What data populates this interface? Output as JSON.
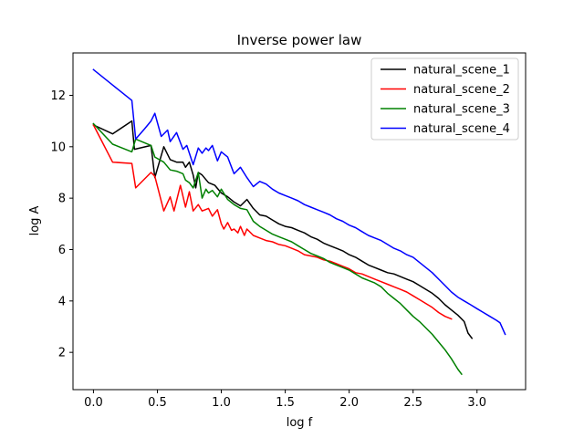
{
  "chart_data": {
    "type": "line",
    "title": "Inverse power law",
    "xlabel": "log f",
    "ylabel": "log A",
    "xlim": [
      -0.16,
      3.38
    ],
    "ylim": [
      0.55,
      13.65
    ],
    "xticks": [
      0.0,
      0.5,
      1.0,
      1.5,
      2.0,
      2.5,
      3.0
    ],
    "xtick_labels": [
      "0.0",
      "0.5",
      "1.0",
      "1.5",
      "2.0",
      "2.5",
      "3.0"
    ],
    "yticks": [
      2,
      4,
      6,
      8,
      10,
      12
    ],
    "ytick_labels": [
      "2",
      "4",
      "6",
      "8",
      "10",
      "12"
    ],
    "grid": false,
    "legend_position": "top-right",
    "series": [
      {
        "name": "natural_scene_1",
        "color": "#000000",
        "x": [
          0.0,
          0.15,
          0.3,
          0.32,
          0.45,
          0.48,
          0.55,
          0.6,
          0.65,
          0.7,
          0.72,
          0.75,
          0.78,
          0.8,
          0.82,
          0.85,
          0.9,
          0.95,
          1.0,
          1.05,
          1.1,
          1.15,
          1.2,
          1.25,
          1.3,
          1.35,
          1.4,
          1.45,
          1.5,
          1.55,
          1.6,
          1.65,
          1.7,
          1.75,
          1.8,
          1.85,
          1.9,
          1.95,
          2.0,
          2.05,
          2.1,
          2.15,
          2.2,
          2.25,
          2.3,
          2.35,
          2.4,
          2.45,
          2.5,
          2.55,
          2.6,
          2.65,
          2.7,
          2.75,
          2.8,
          2.85,
          2.9,
          2.93,
          2.96
        ],
        "y": [
          10.85,
          10.5,
          11.0,
          9.9,
          10.05,
          8.8,
          10.0,
          9.5,
          9.4,
          9.4,
          9.2,
          9.4,
          8.9,
          8.4,
          9.0,
          8.9,
          8.6,
          8.5,
          8.2,
          8.05,
          7.85,
          7.7,
          7.95,
          7.6,
          7.35,
          7.3,
          7.15,
          7.0,
          6.9,
          6.85,
          6.75,
          6.65,
          6.5,
          6.4,
          6.25,
          6.15,
          6.05,
          5.95,
          5.8,
          5.7,
          5.55,
          5.4,
          5.3,
          5.2,
          5.1,
          5.05,
          4.95,
          4.85,
          4.75,
          4.6,
          4.45,
          4.3,
          4.1,
          3.85,
          3.65,
          3.45,
          3.2,
          2.75,
          2.55
        ]
      },
      {
        "name": "natural_scene_2",
        "color": "#ff0000",
        "x": [
          0.0,
          0.15,
          0.3,
          0.33,
          0.45,
          0.48,
          0.55,
          0.6,
          0.63,
          0.68,
          0.72,
          0.75,
          0.78,
          0.82,
          0.85,
          0.9,
          0.93,
          0.97,
          1.0,
          1.02,
          1.05,
          1.08,
          1.1,
          1.13,
          1.15,
          1.18,
          1.2,
          1.25,
          1.3,
          1.35,
          1.4,
          1.45,
          1.5,
          1.55,
          1.6,
          1.65,
          1.7,
          1.75,
          1.8,
          1.85,
          1.9,
          1.95,
          2.0,
          2.05,
          2.1,
          2.15,
          2.2,
          2.25,
          2.3,
          2.35,
          2.4,
          2.45,
          2.5,
          2.55,
          2.6,
          2.65,
          2.7,
          2.75,
          2.8
        ],
        "y": [
          10.85,
          9.4,
          9.35,
          8.4,
          9.0,
          8.85,
          7.5,
          8.05,
          7.5,
          8.5,
          7.65,
          8.25,
          7.5,
          7.75,
          7.5,
          7.6,
          7.3,
          7.55,
          7.0,
          6.8,
          7.05,
          6.75,
          6.8,
          6.65,
          6.9,
          6.55,
          6.8,
          6.55,
          6.45,
          6.35,
          6.3,
          6.2,
          6.15,
          6.05,
          5.95,
          5.8,
          5.75,
          5.7,
          5.6,
          5.55,
          5.45,
          5.35,
          5.25,
          5.1,
          5.05,
          4.95,
          4.85,
          4.75,
          4.65,
          4.55,
          4.45,
          4.35,
          4.2,
          4.05,
          3.9,
          3.75,
          3.55,
          3.4,
          3.3
        ]
      },
      {
        "name": "natural_scene_3",
        "color": "#008000",
        "x": [
          0.0,
          0.15,
          0.3,
          0.33,
          0.45,
          0.48,
          0.55,
          0.6,
          0.65,
          0.7,
          0.72,
          0.75,
          0.78,
          0.82,
          0.85,
          0.88,
          0.9,
          0.93,
          0.97,
          1.0,
          1.05,
          1.1,
          1.15,
          1.2,
          1.25,
          1.3,
          1.35,
          1.4,
          1.45,
          1.5,
          1.55,
          1.6,
          1.65,
          1.7,
          1.75,
          1.8,
          1.85,
          1.9,
          1.95,
          2.0,
          2.05,
          2.1,
          2.15,
          2.2,
          2.25,
          2.3,
          2.35,
          2.4,
          2.45,
          2.5,
          2.55,
          2.6,
          2.65,
          2.7,
          2.75,
          2.8,
          2.85,
          2.88
        ],
        "y": [
          10.9,
          10.1,
          9.8,
          10.3,
          10.05,
          9.6,
          9.4,
          9.1,
          9.05,
          8.95,
          8.7,
          8.6,
          8.4,
          9.0,
          8.0,
          8.35,
          8.2,
          8.3,
          8.05,
          8.35,
          7.95,
          7.75,
          7.6,
          7.55,
          7.1,
          6.9,
          6.75,
          6.6,
          6.5,
          6.4,
          6.3,
          6.15,
          6.0,
          5.85,
          5.75,
          5.65,
          5.5,
          5.4,
          5.3,
          5.2,
          5.05,
          4.9,
          4.8,
          4.7,
          4.55,
          4.3,
          4.1,
          3.9,
          3.65,
          3.4,
          3.2,
          2.95,
          2.7,
          2.4,
          2.1,
          1.75,
          1.35,
          1.15
        ]
      },
      {
        "name": "natural_scene_4",
        "color": "#0000ff",
        "x": [
          0.0,
          0.15,
          0.3,
          0.33,
          0.4,
          0.45,
          0.48,
          0.53,
          0.58,
          0.6,
          0.65,
          0.7,
          0.73,
          0.78,
          0.82,
          0.85,
          0.88,
          0.9,
          0.93,
          0.97,
          1.0,
          1.05,
          1.1,
          1.15,
          1.2,
          1.25,
          1.3,
          1.35,
          1.4,
          1.45,
          1.5,
          1.55,
          1.6,
          1.65,
          1.7,
          1.75,
          1.8,
          1.85,
          1.9,
          1.95,
          2.0,
          2.05,
          2.1,
          2.15,
          2.2,
          2.25,
          2.3,
          2.35,
          2.4,
          2.45,
          2.5,
          2.55,
          2.6,
          2.65,
          2.7,
          2.75,
          2.8,
          2.85,
          2.9,
          2.95,
          3.0,
          3.05,
          3.1,
          3.15,
          3.18,
          3.22
        ],
        "y": [
          13.0,
          12.4,
          11.8,
          10.3,
          10.7,
          11.0,
          11.3,
          10.4,
          10.65,
          10.2,
          10.55,
          9.9,
          10.05,
          9.3,
          9.95,
          9.75,
          9.95,
          9.85,
          10.05,
          9.45,
          9.8,
          9.6,
          8.95,
          9.2,
          8.8,
          8.45,
          8.65,
          8.55,
          8.35,
          8.2,
          8.1,
          8.0,
          7.9,
          7.75,
          7.65,
          7.55,
          7.45,
          7.35,
          7.2,
          7.1,
          6.95,
          6.85,
          6.7,
          6.55,
          6.45,
          6.35,
          6.2,
          6.05,
          5.95,
          5.8,
          5.7,
          5.5,
          5.3,
          5.1,
          4.85,
          4.6,
          4.35,
          4.15,
          4.0,
          3.85,
          3.7,
          3.55,
          3.4,
          3.25,
          3.15,
          2.7
        ]
      }
    ]
  }
}
